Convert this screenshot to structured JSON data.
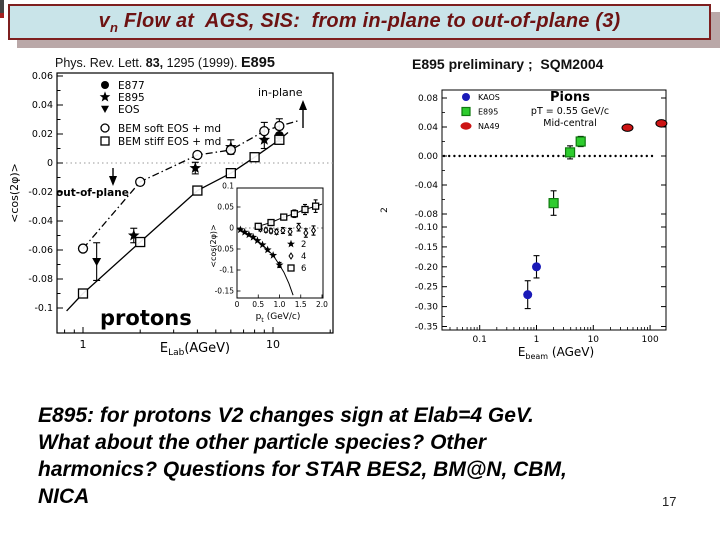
{
  "slide": {
    "title": {
      "pre": "v",
      "sub": "n",
      "rest": " Flow at  AGS, SIS:  from in-plane to out-of-plane (3)"
    },
    "caption": {
      "p1": "Phys. Rev. Lett. ",
      "p2": "83,",
      "p3": " 1295 (1999). ",
      "p4": "E895"
    },
    "right_heading": "E895 preliminary ;  SQM2004",
    "bottom_text": "E895:  for protons  V2 changes sign at  Elab=4 GeV.\nWhat about the other particle species? Other\nharmonics?  Questions for STAR BES2, BM@N, CBM,\nNICA",
    "page_number": "17",
    "colors": {
      "title_box_bg": "#c9e4e9",
      "title_box_border": "#7e1f1f",
      "title_text": "#6d1212",
      "title_shadow": "#baa8a8",
      "kaos_blue": "#1a1ab8",
      "e895_green": "#2ecc2e",
      "e895_green_edge": "#0f7a0f",
      "na49_red": "#cc1414"
    }
  },
  "chart_data": [
    {
      "id": "left-main",
      "type": "scatter",
      "xscale": "log",
      "xlabel": {
        "pre": "E",
        "sub": "Lab",
        "post": "(AGeV)"
      },
      "ylabel": "<cos(2φ)>",
      "xlim": [
        0.73,
        20.7
      ],
      "ylim": [
        -0.117,
        0.062
      ],
      "grid": false,
      "zero_line": 0,
      "xticks": [
        {
          "v": 1,
          "t": "1"
        },
        {
          "v": 10,
          "t": "10"
        }
      ],
      "yticks": [
        {
          "v": 0.06,
          "t": "0.06"
        },
        {
          "v": 0.04,
          "t": "0.04"
        },
        {
          "v": 0.02,
          "t": "0.02"
        },
        {
          "v": 0,
          "t": "0"
        },
        {
          "v": -0.02,
          "t": "-0.02"
        },
        {
          "v": -0.04,
          "t": "-0.04"
        },
        {
          "v": -0.06,
          "t": "-0.06"
        },
        {
          "v": -0.08,
          "t": "-0.08"
        },
        {
          "v": -0.1,
          "t": "-0.1"
        }
      ],
      "annotations": {
        "in_plane": "in-plane",
        "out_of_plane": "out-of-plane",
        "particle_label": "protons"
      },
      "series": [
        {
          "name": "E877",
          "marker": "filled-circle",
          "points": [
            {
              "x": 10.8,
              "y": 0.019,
              "e": 0.004
            }
          ]
        },
        {
          "name": "E895",
          "marker": "star",
          "points": [
            {
              "x": 1.85,
              "y": -0.05,
              "e": 0.005
            },
            {
              "x": 3.9,
              "y": -0.0035,
              "e": 0.004
            },
            {
              "x": 6.0,
              "y": 0.011,
              "e": 0.005
            },
            {
              "x": 9.0,
              "y": 0.016,
              "e": 0.006
            }
          ]
        },
        {
          "name": "EOS",
          "marker": "triangle-down",
          "points": [
            {
              "x": 1.18,
              "y": -0.068,
              "e": 0.013
            }
          ]
        },
        {
          "name": "BEM soft EOS + md",
          "marker": "open-circle",
          "line": "dashdot",
          "points": [
            {
              "x": 1.0,
              "y": -0.059
            },
            {
              "x": 2.0,
              "y": -0.013
            },
            {
              "x": 4.0,
              "y": 0.0055
            },
            {
              "x": 6.0,
              "y": 0.009
            },
            {
              "x": 9.0,
              "y": 0.022,
              "e": 0.006
            },
            {
              "x": 10.8,
              "y": 0.0255,
              "e": 0.005
            }
          ]
        },
        {
          "name": "BEM stiff EOS + md",
          "marker": "open-square",
          "line": "solid",
          "points": [
            {
              "x": 1.0,
              "y": -0.09
            },
            {
              "x": 2.0,
              "y": -0.0545
            },
            {
              "x": 4.0,
              "y": -0.019
            },
            {
              "x": 6.0,
              "y": -0.007
            },
            {
              "x": 8.0,
              "y": 0.004
            },
            {
              "x": 10.8,
              "y": 0.016
            }
          ]
        }
      ]
    },
    {
      "id": "left-inset",
      "type": "scatter",
      "xlabel": {
        "pre": "p",
        "sub": "t",
        "post": " (GeV/c)"
      },
      "ylabel": "<cos(2φ)>",
      "xlim": [
        0,
        2.0
      ],
      "ylim": [
        -0.15,
        0.1
      ],
      "zero_line": 0,
      "xticks": [
        {
          "v": 0,
          "t": "0"
        },
        {
          "v": 0.5,
          "t": "0.5"
        },
        {
          "v": 1.0,
          "t": "1.0"
        },
        {
          "v": 1.5,
          "t": "1.5"
        },
        {
          "v": 2.0,
          "t": "2.0"
        }
      ],
      "yticks": [
        {
          "v": 0.1,
          "t": "0.1"
        },
        {
          "v": 0.05,
          "t": "0.05"
        },
        {
          "v": 0,
          "t": "0"
        },
        {
          "v": -0.05,
          "t": "-0.05"
        },
        {
          "v": -0.1,
          "t": "-0.1"
        },
        {
          "v": -0.15,
          "t": "-0.15"
        }
      ],
      "legend": [
        {
          "marker": "star",
          "label": "2"
        },
        {
          "marker": "diamond",
          "label": "4"
        },
        {
          "marker": "open-square",
          "label": "6"
        }
      ],
      "series": [
        {
          "name": "2",
          "marker": "star",
          "line": "solid",
          "line_ext": [
            {
              "x": 1.1,
              "y": -0.105
            },
            {
              "x": 1.22,
              "y": -0.132
            },
            {
              "x": 1.32,
              "y": -0.16
            }
          ],
          "points": [
            {
              "x": 0.08,
              "y": -0.004
            },
            {
              "x": 0.18,
              "y": -0.01
            },
            {
              "x": 0.28,
              "y": -0.016
            },
            {
              "x": 0.38,
              "y": -0.022
            },
            {
              "x": 0.48,
              "y": -0.03
            },
            {
              "x": 0.6,
              "y": -0.04
            },
            {
              "x": 0.72,
              "y": -0.052
            },
            {
              "x": 0.85,
              "y": -0.065
            },
            {
              "x": 1.0,
              "y": -0.088,
              "e": 0.006
            }
          ]
        },
        {
          "name": "4",
          "marker": "diamond",
          "points": [
            {
              "x": 0.55,
              "y": -0.002,
              "e": 0.005
            },
            {
              "x": 0.68,
              "y": -0.005,
              "e": 0.005
            },
            {
              "x": 0.8,
              "y": -0.007,
              "e": 0.005
            },
            {
              "x": 0.93,
              "y": -0.009,
              "e": 0.006
            },
            {
              "x": 1.08,
              "y": -0.006,
              "e": 0.007
            },
            {
              "x": 1.25,
              "y": -0.009,
              "e": 0.008
            },
            {
              "x": 1.45,
              "y": 0.002,
              "e": 0.009
            },
            {
              "x": 1.62,
              "y": -0.012,
              "e": 0.01
            },
            {
              "x": 1.8,
              "y": -0.006,
              "e": 0.011
            }
          ]
        },
        {
          "name": "6",
          "marker": "open-square",
          "line": "solid",
          "points": [
            {
              "x": 0.5,
              "y": 0.004,
              "e": 0.004
            },
            {
              "x": 0.8,
              "y": 0.013,
              "e": 0.005
            },
            {
              "x": 1.1,
              "y": 0.026,
              "e": 0.007
            },
            {
              "x": 1.35,
              "y": 0.034,
              "e": 0.009
            },
            {
              "x": 1.6,
              "y": 0.044,
              "e": 0.012
            },
            {
              "x": 1.85,
              "y": 0.052,
              "e": 0.015
            }
          ]
        }
      ]
    },
    {
      "id": "right",
      "type": "scatter",
      "xscale": "log",
      "title_lines": [
        "Pions",
        "pT = 0.55 GeV/c",
        "Mid-central"
      ],
      "xlabel": {
        "pre": "E",
        "sub": "beam",
        "post": " (AGeV)"
      },
      "ylabel": "2",
      "zero_line": 0,
      "xticks": [
        {
          "v": 0.1,
          "t": "0.1"
        },
        {
          "v": 1,
          "t": "1"
        },
        {
          "v": 10,
          "t": "10"
        },
        {
          "v": 100,
          "t": "100"
        }
      ],
      "yticks": [
        {
          "v": 0.08,
          "t": "0.08"
        },
        {
          "v": 0.04,
          "t": "0.04"
        },
        {
          "v": 0,
          "t": "0.00"
        },
        {
          "v": -0.04,
          "t": "-0.04"
        },
        {
          "v": -0.08,
          "t": "-0.08"
        },
        {
          "v": -0.1,
          "t": "-0.10"
        },
        {
          "v": -0.15,
          "t": "-0.15"
        },
        {
          "v": -0.2,
          "t": "-0.20"
        },
        {
          "v": -0.25,
          "t": "-0.25"
        },
        {
          "v": -0.3,
          "t": "-0.30"
        },
        {
          "v": -0.35,
          "t": "-0.35"
        }
      ],
      "series": [
        {
          "name": "KAOS",
          "marker": "filled-circle",
          "color": "#1a1ab8",
          "points": [
            {
              "x": 0.7,
              "y": -0.27,
              "e": 0.035
            },
            {
              "x": 1.0,
              "y": -0.2,
              "e": 0.028
            }
          ]
        },
        {
          "name": "E895",
          "marker": "filled-square",
          "color": "#2ecc2e",
          "edge": "#0f7a0f",
          "points": [
            {
              "x": 2.0,
              "y": -0.065,
              "e": 0.017
            },
            {
              "x": 3.9,
              "y": 0.005,
              "e": 0.009
            },
            {
              "x": 6.0,
              "y": 0.02,
              "e": 0.007
            }
          ]
        },
        {
          "name": "NA49",
          "marker": "filled-ellipse",
          "color": "#cc1414",
          "points": [
            {
              "x": 40,
              "y": 0.039,
              "e": 0.003
            },
            {
              "x": 158,
              "y": 0.045,
              "e": 0.003
            }
          ]
        }
      ]
    }
  ]
}
